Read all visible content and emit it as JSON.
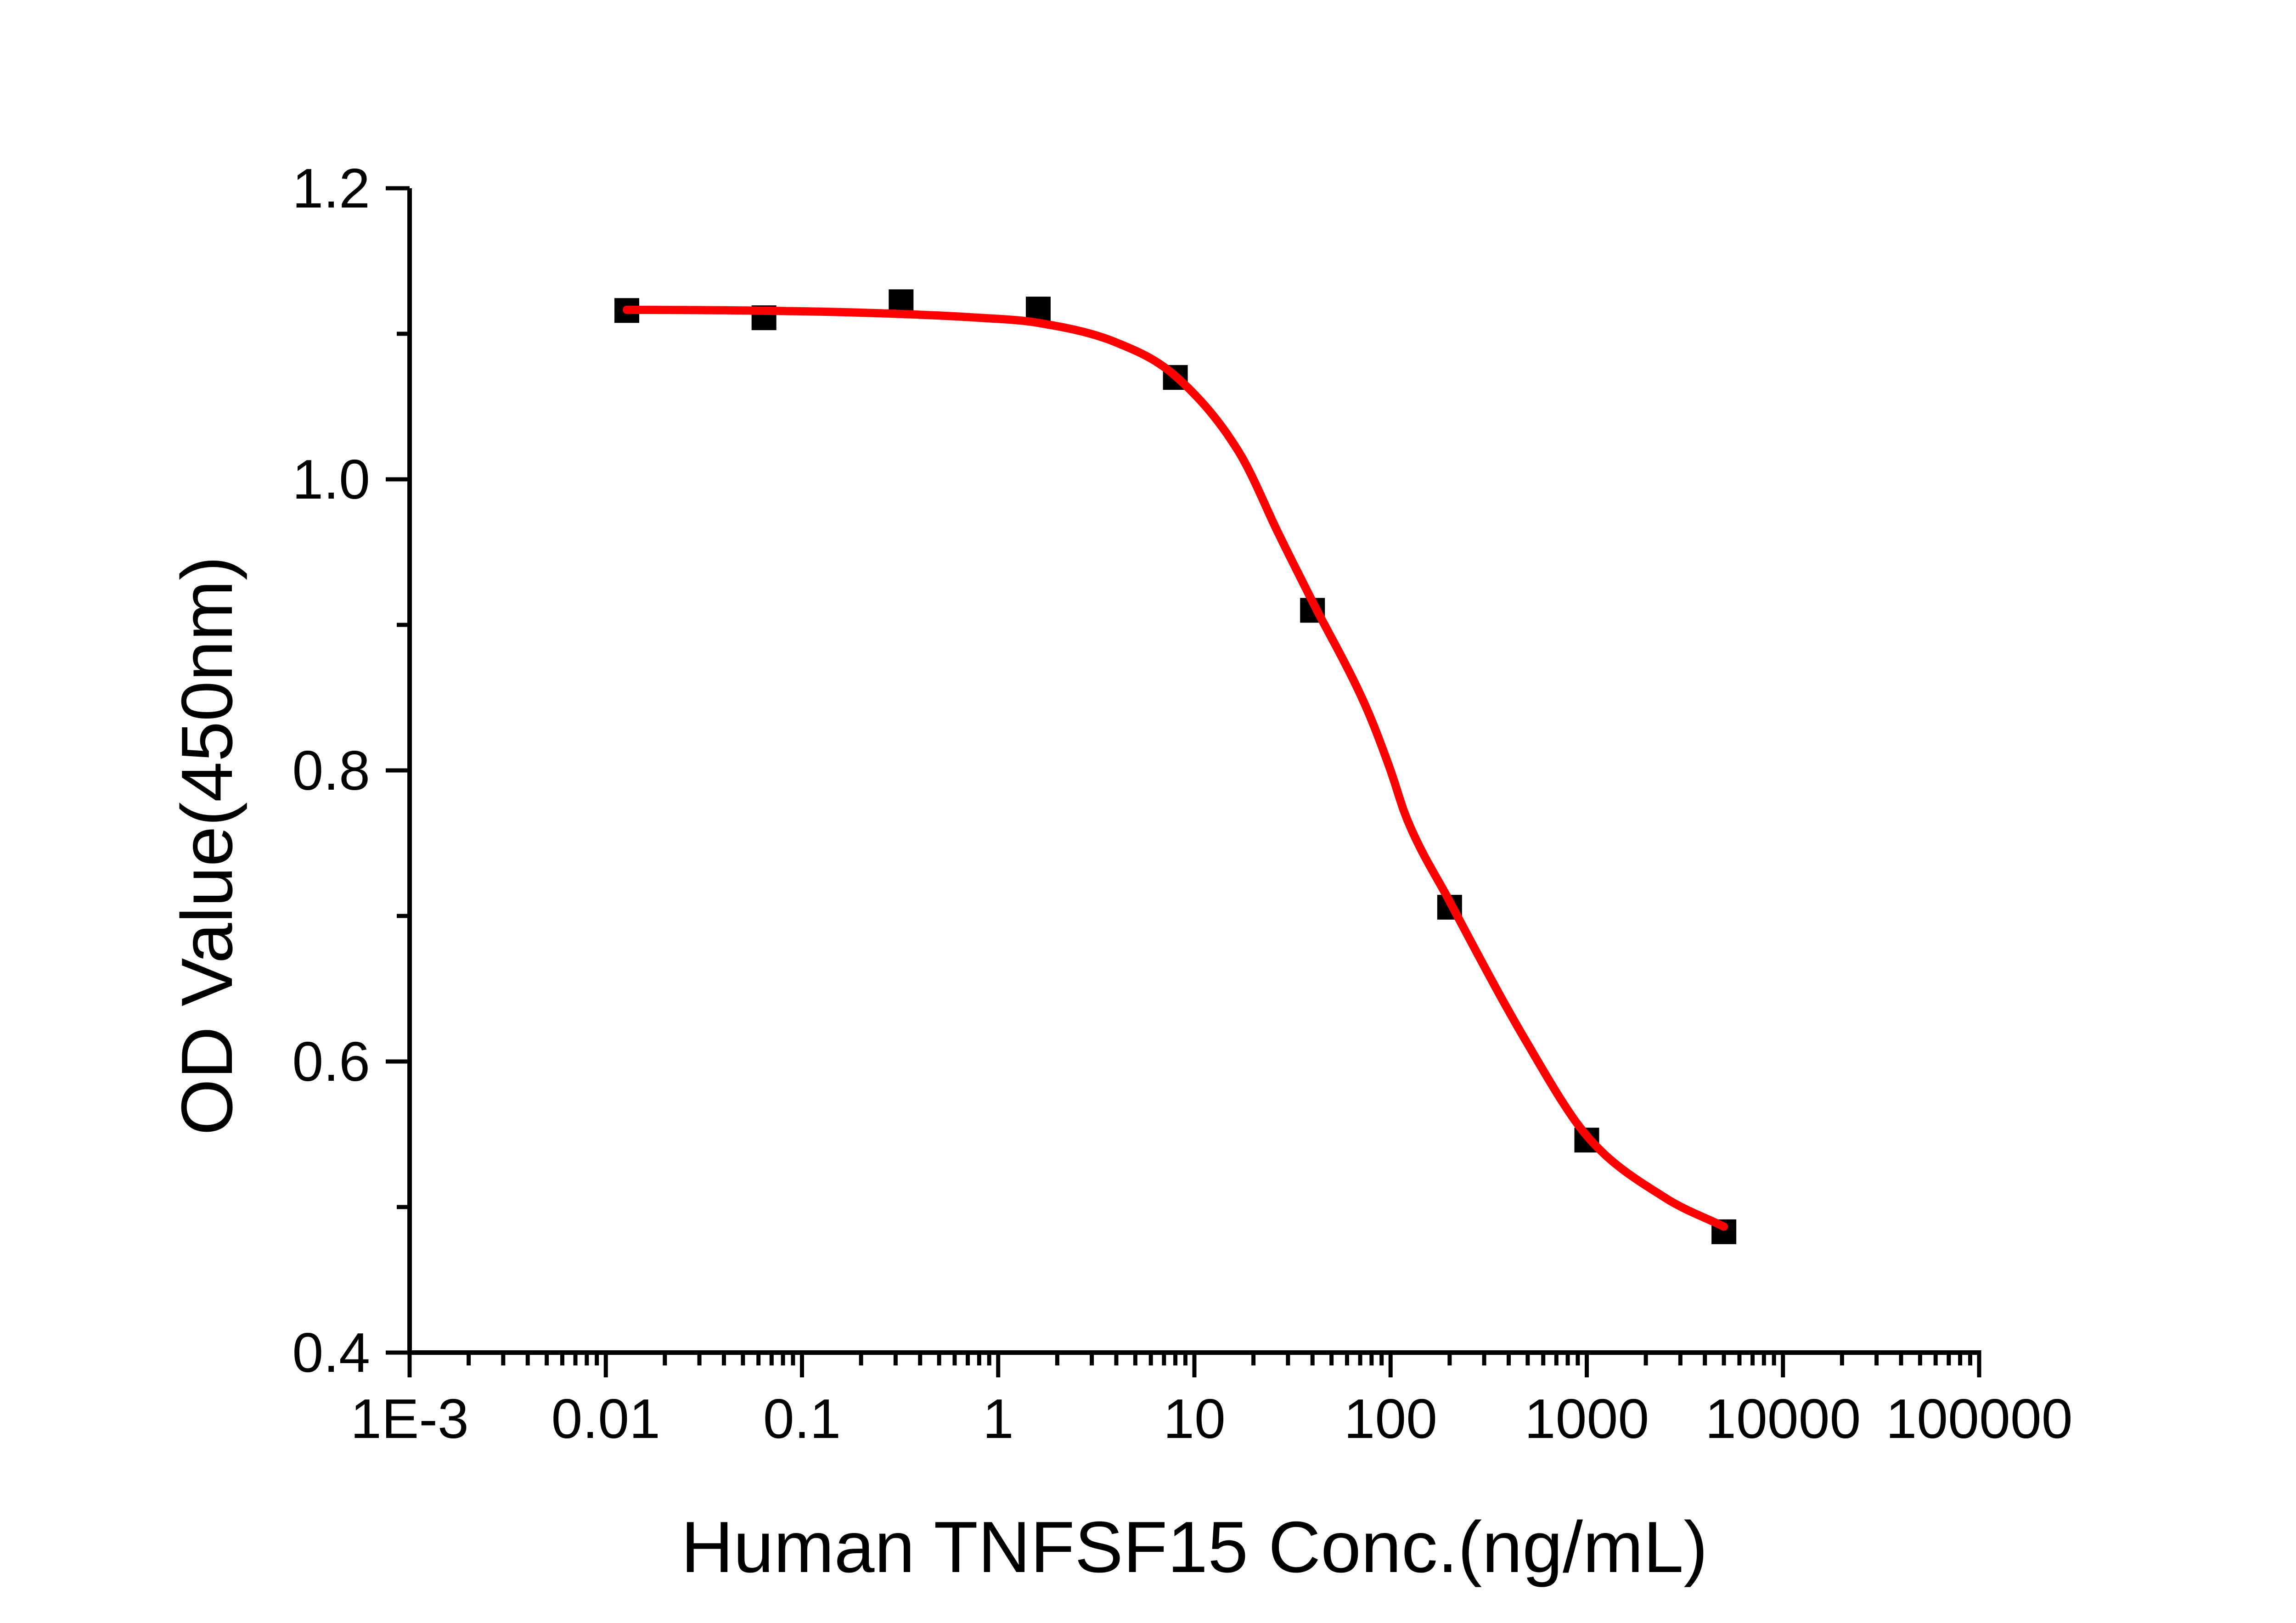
{
  "chart_data": {
    "type": "scatter",
    "title": "",
    "xlabel": "Human TNFSF15 Conc.(ng/mL)",
    "ylabel": "OD Value(450nm)",
    "x_scale": "log",
    "xlim": [
      0.001,
      100000
    ],
    "ylim": [
      0.4,
      1.2
    ],
    "grid": false,
    "legend": null,
    "background_color": "#ffffff",
    "axis_color": "#000000",
    "x_ticks": [
      {
        "value": 0.001,
        "label": "1E-3"
      },
      {
        "value": 0.01,
        "label": "0.01"
      },
      {
        "value": 0.1,
        "label": "0.1"
      },
      {
        "value": 1,
        "label": "1"
      },
      {
        "value": 10,
        "label": "10"
      },
      {
        "value": 100,
        "label": "100"
      },
      {
        "value": 1000,
        "label": "1000"
      },
      {
        "value": 10000,
        "label": "10000"
      },
      {
        "value": 100000,
        "label": "100000"
      }
    ],
    "y_ticks": [
      {
        "value": 0.4,
        "label": "0.4"
      },
      {
        "value": 0.6,
        "label": "0.6"
      },
      {
        "value": 0.8,
        "label": "0.8"
      },
      {
        "value": 1.0,
        "label": "1.0"
      },
      {
        "value": 1.2,
        "label": "1.2"
      }
    ],
    "y_minor_ticks": [
      0.5,
      0.7,
      0.9,
      1.1
    ],
    "x_minor_ticks": "log-2-to-9-per-decade",
    "series": [
      {
        "name": "OD measurements",
        "marker": "square",
        "color": "#000000",
        "points": [
          [
            0.0128,
            1.116
          ],
          [
            0.064,
            1.111
          ],
          [
            0.32,
            1.122
          ],
          [
            1.6,
            1.117
          ],
          [
            8,
            1.07
          ],
          [
            40,
            0.91
          ],
          [
            200,
            0.706
          ],
          [
            1000,
            0.546
          ],
          [
            5000,
            0.483
          ]
        ]
      }
    ],
    "fit_curve": {
      "name": "dose-response fit",
      "color": "#ff0000",
      "points": [
        [
          0.0128,
          1.1165
        ],
        [
          0.05,
          1.116
        ],
        [
          0.2,
          1.1145
        ],
        [
          0.8,
          1.111
        ],
        [
          1.6,
          1.1075
        ],
        [
          4,
          1.094
        ],
        [
          8,
          1.071
        ],
        [
          17,
          1.018
        ],
        [
          27,
          0.962
        ],
        [
          40,
          0.916
        ],
        [
          75,
          0.8435
        ],
        [
          100,
          0.8
        ],
        [
          120,
          0.768
        ],
        [
          200,
          0.71
        ],
        [
          500,
          0.612
        ],
        [
          1000,
          0.549
        ],
        [
          2500,
          0.5065
        ],
        [
          5000,
          0.4865
        ]
      ]
    }
  }
}
